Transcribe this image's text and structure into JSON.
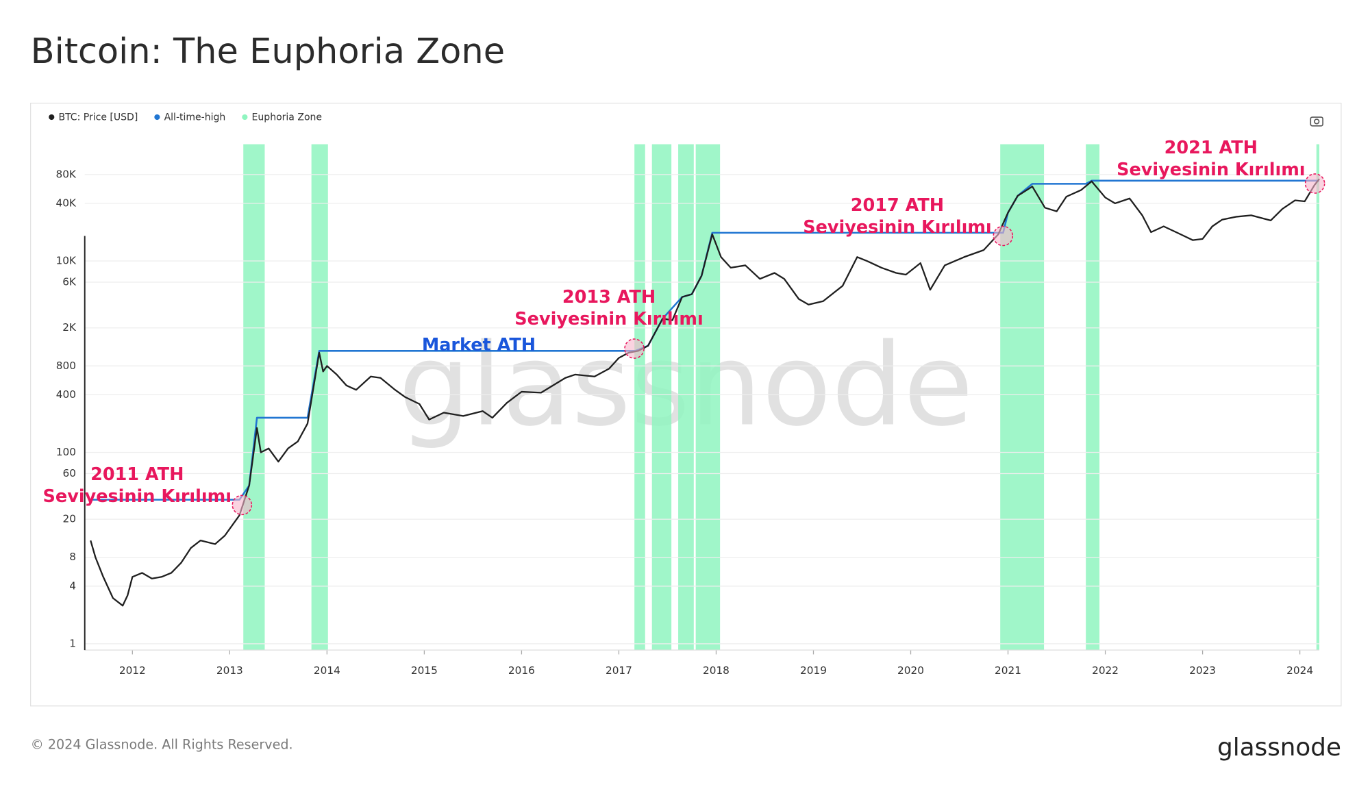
{
  "chart_data": {
    "type": "line",
    "title": "Bitcoin: The Euphoria Zone",
    "log_scale": true,
    "grid": true,
    "legend": "top-left",
    "xlim": [
      2011.51,
      2024.2
    ],
    "xticks": [
      2012,
      2013,
      2014,
      2015,
      2016,
      2017,
      2018,
      2019,
      2020,
      2021,
      2022,
      2023,
      2024
    ],
    "ylim": [
      0.86,
      166000
    ],
    "yticks": [
      1,
      4,
      8,
      20,
      60,
      100,
      400,
      800,
      {
        "value": 2000,
        "label": "2K"
      },
      {
        "value": 6000,
        "label": "6K"
      },
      {
        "value": 10000,
        "label": "10K"
      },
      {
        "value": 40000,
        "label": "40K"
      },
      {
        "value": 80000,
        "label": "80K"
      }
    ],
    "series": [
      {
        "name": "BTC: Price [USD]",
        "color": "#1f1f1f",
        "x": [
          2011.57,
          2011.62,
          2011.7,
          2011.8,
          2011.9,
          2011.95,
          2012.0,
          2012.1,
          2012.2,
          2012.3,
          2012.4,
          2012.5,
          2012.6,
          2012.7,
          2012.85,
          2012.95,
          2013.1,
          2013.2,
          2013.28,
          2013.32,
          2013.4,
          2013.5,
          2013.6,
          2013.7,
          2013.8,
          2013.92,
          2013.96,
          2014.0,
          2014.1,
          2014.2,
          2014.3,
          2014.45,
          2014.55,
          2014.7,
          2014.8,
          2014.95,
          2015.05,
          2015.2,
          2015.4,
          2015.6,
          2015.7,
          2015.85,
          2016.0,
          2016.2,
          2016.45,
          2016.55,
          2016.75,
          2016.9,
          2017.0,
          2017.1,
          2017.2,
          2017.3,
          2017.45,
          2017.55,
          2017.65,
          2017.75,
          2017.85,
          2017.96,
          2018.05,
          2018.15,
          2018.3,
          2018.45,
          2018.6,
          2018.7,
          2018.85,
          2018.95,
          2019.1,
          2019.3,
          2019.45,
          2019.55,
          2019.7,
          2019.85,
          2019.95,
          2020.1,
          2020.2,
          2020.35,
          2020.55,
          2020.75,
          2020.9,
          2021.0,
          2021.1,
          2021.25,
          2021.38,
          2021.5,
          2021.6,
          2021.75,
          2021.86,
          2022.0,
          2022.1,
          2022.25,
          2022.38,
          2022.47,
          2022.6,
          2022.75,
          2022.9,
          2023.0,
          2023.1,
          2023.2,
          2023.35,
          2023.5,
          2023.7,
          2023.82,
          2023.95,
          2024.05,
          2024.15,
          2024.2
        ],
        "values": [
          12,
          8,
          5,
          3,
          2.5,
          3.2,
          5,
          5.5,
          4.8,
          5,
          5.5,
          7,
          10,
          12,
          11,
          13.5,
          22,
          45,
          180,
          100,
          110,
          80,
          110,
          130,
          200,
          1100,
          700,
          800,
          650,
          500,
          450,
          620,
          600,
          450,
          380,
          320,
          220,
          260,
          240,
          270,
          230,
          330,
          430,
          420,
          600,
          650,
          620,
          750,
          970,
          1100,
          1150,
          1300,
          2500,
          2400,
          4200,
          4500,
          7000,
          19000,
          11000,
          8500,
          9000,
          6500,
          7500,
          6500,
          4000,
          3500,
          3800,
          5500,
          11000,
          10000,
          8500,
          7500,
          7200,
          9500,
          5000,
          9000,
          11000,
          13000,
          19000,
          32000,
          48000,
          60000,
          36000,
          33000,
          47000,
          55000,
          68000,
          46000,
          40000,
          45000,
          30000,
          20000,
          23000,
          19500,
          16500,
          17000,
          23000,
          27000,
          29000,
          30000,
          26500,
          35000,
          43000,
          42000,
          62000,
          72000
        ]
      },
      {
        "name": "All-time-high",
        "color": "#2176d2",
        "x": [
          2011.57,
          2013.1,
          2013.2,
          2013.28,
          2013.8,
          2013.92,
          2017.17,
          2017.3,
          2017.45,
          2017.65,
          2017.75,
          2017.85,
          2017.96,
          2020.95,
          2021.0,
          2021.1,
          2021.25,
          2021.8,
          2021.86,
          2024.2
        ],
        "values": [
          32,
          32,
          45,
          230,
          230,
          1150,
          1150,
          1300,
          2500,
          4200,
          4500,
          7000,
          19700,
          19700,
          32000,
          48000,
          64000,
          64000,
          69000,
          69000
        ]
      },
      {
        "name": "Euphoria Zone",
        "color": "#8ff5c0",
        "ranges": [
          [
            2013.14,
            2013.36
          ],
          [
            2013.84,
            2014.01
          ],
          [
            2017.16,
            2017.27
          ],
          [
            2017.34,
            2017.54
          ],
          [
            2017.61,
            2017.77
          ],
          [
            2017.79,
            2018.04
          ],
          [
            2020.92,
            2021.37
          ],
          [
            2021.8,
            2021.94
          ],
          [
            2024.17,
            2024.2
          ]
        ]
      }
    ],
    "annotations": [
      {
        "lines": [
          "2011 ATH",
          "Seviyesinin Kırılımı"
        ]
      },
      {
        "lines": [
          "2013 ATH",
          "Seviyesinin Kırılımı"
        ]
      },
      {
        "lines": [
          "Market ATH"
        ]
      },
      {
        "lines": [
          "2017 ATH",
          "Seviyesinin Kırılımı"
        ]
      },
      {
        "lines": [
          "2021 ATH",
          "Seviyesinin Kırılımı"
        ]
      }
    ],
    "watermark": "glassnode",
    "footer": "© 2024 Glassnode. All Rights Reserved.",
    "logo": "glassnode"
  }
}
